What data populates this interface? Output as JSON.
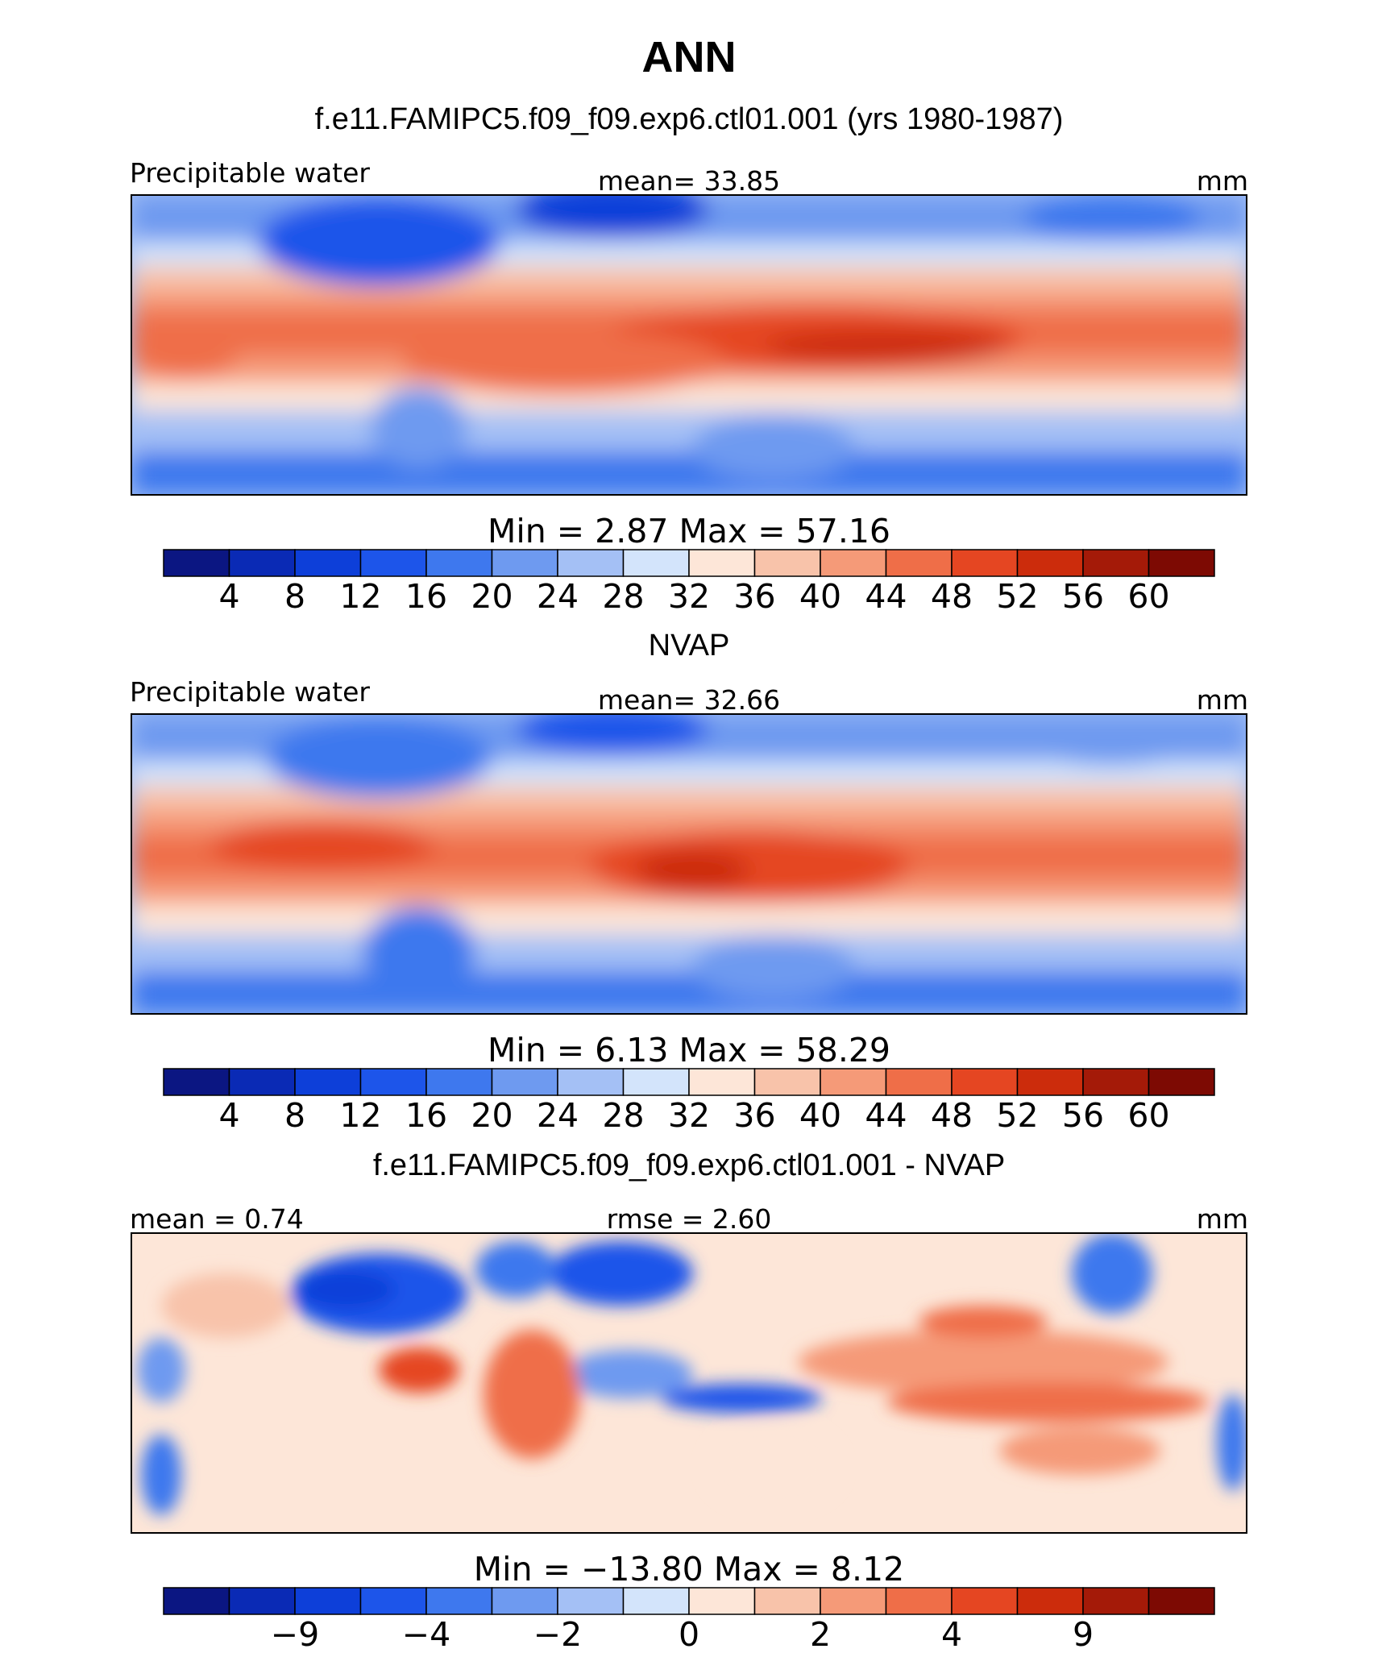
{
  "figure": {
    "title": "ANN",
    "subtitle": "f.e11.FAMIPC5.f09_f09.exp6.ctl01.001 (yrs 1980-1987)"
  },
  "colors": {
    "map_palette": [
      "#0b1682",
      "#0a2ab5",
      "#0d3fd9",
      "#1d55ea",
      "#3e78ee",
      "#6e9af0",
      "#a4c0f5",
      "#d3e4fb",
      "#fde6d8",
      "#f8c3aa",
      "#f59a78",
      "#ef6e48",
      "#e54622",
      "#cc2c0c",
      "#a41a08",
      "#7d0a03"
    ],
    "coastline": "#000000"
  },
  "panels": [
    {
      "panel_title": "",
      "left_label": "Precipitable water",
      "center_label": "mean=   33.85",
      "units": "mm",
      "minmax": "Min  =    2.87  Max  =   57.16",
      "colorbar_ticks": [
        "4",
        "8",
        "12",
        "16",
        "20",
        "24",
        "28",
        "32",
        "36",
        "40",
        "44",
        "48",
        "52",
        "56",
        "60"
      ]
    },
    {
      "panel_title": "NVAP",
      "left_label": "Precipitable water",
      "center_label": "mean=   32.66",
      "units": "mm",
      "minmax": "Min  =    6.13  Max  =   58.29",
      "colorbar_ticks": [
        "4",
        "8",
        "12",
        "16",
        "20",
        "24",
        "28",
        "32",
        "36",
        "40",
        "44",
        "48",
        "52",
        "56",
        "60"
      ]
    },
    {
      "panel_title": "f.e11.FAMIPC5.f09_f09.exp6.ctl01.001 - NVAP",
      "left_label": "mean  =    0.74",
      "center_label": "rmse  =    2.60",
      "units": "mm",
      "minmax": "Min  = −13.80  Max  =    8.12",
      "colorbar_ticks": [
        "−9",
        "−4",
        "−2",
        "0",
        "2",
        "4",
        "9"
      ]
    }
  ],
  "chart_data": [
    {
      "type": "heatmap",
      "title": "ANN",
      "subtitle": "f.e11.FAMIPC5.f09_f09.exp6.ctl01.001 (yrs 1980-1987)",
      "variable": "Precipitable water",
      "units": "mm",
      "mean": 33.85,
      "min": 2.87,
      "max": 57.16,
      "contour_levels": [
        4,
        8,
        12,
        16,
        20,
        24,
        28,
        32,
        36,
        40,
        44,
        48,
        52,
        56,
        60
      ]
    },
    {
      "type": "heatmap",
      "title": "NVAP",
      "variable": "Precipitable water",
      "units": "mm",
      "mean": 32.66,
      "min": 6.13,
      "max": 58.29,
      "contour_levels": [
        4,
        8,
        12,
        16,
        20,
        24,
        28,
        32,
        36,
        40,
        44,
        48,
        52,
        56,
        60
      ]
    },
    {
      "type": "heatmap",
      "title": "f.e11.FAMIPC5.f09_f09.exp6.ctl01.001 - NVAP",
      "units": "mm",
      "mean": 0.74,
      "rmse": 2.6,
      "min": -13.8,
      "max": 8.12,
      "contour_levels": [
        -9,
        -4,
        -2,
        0,
        2,
        4,
        9
      ]
    }
  ]
}
